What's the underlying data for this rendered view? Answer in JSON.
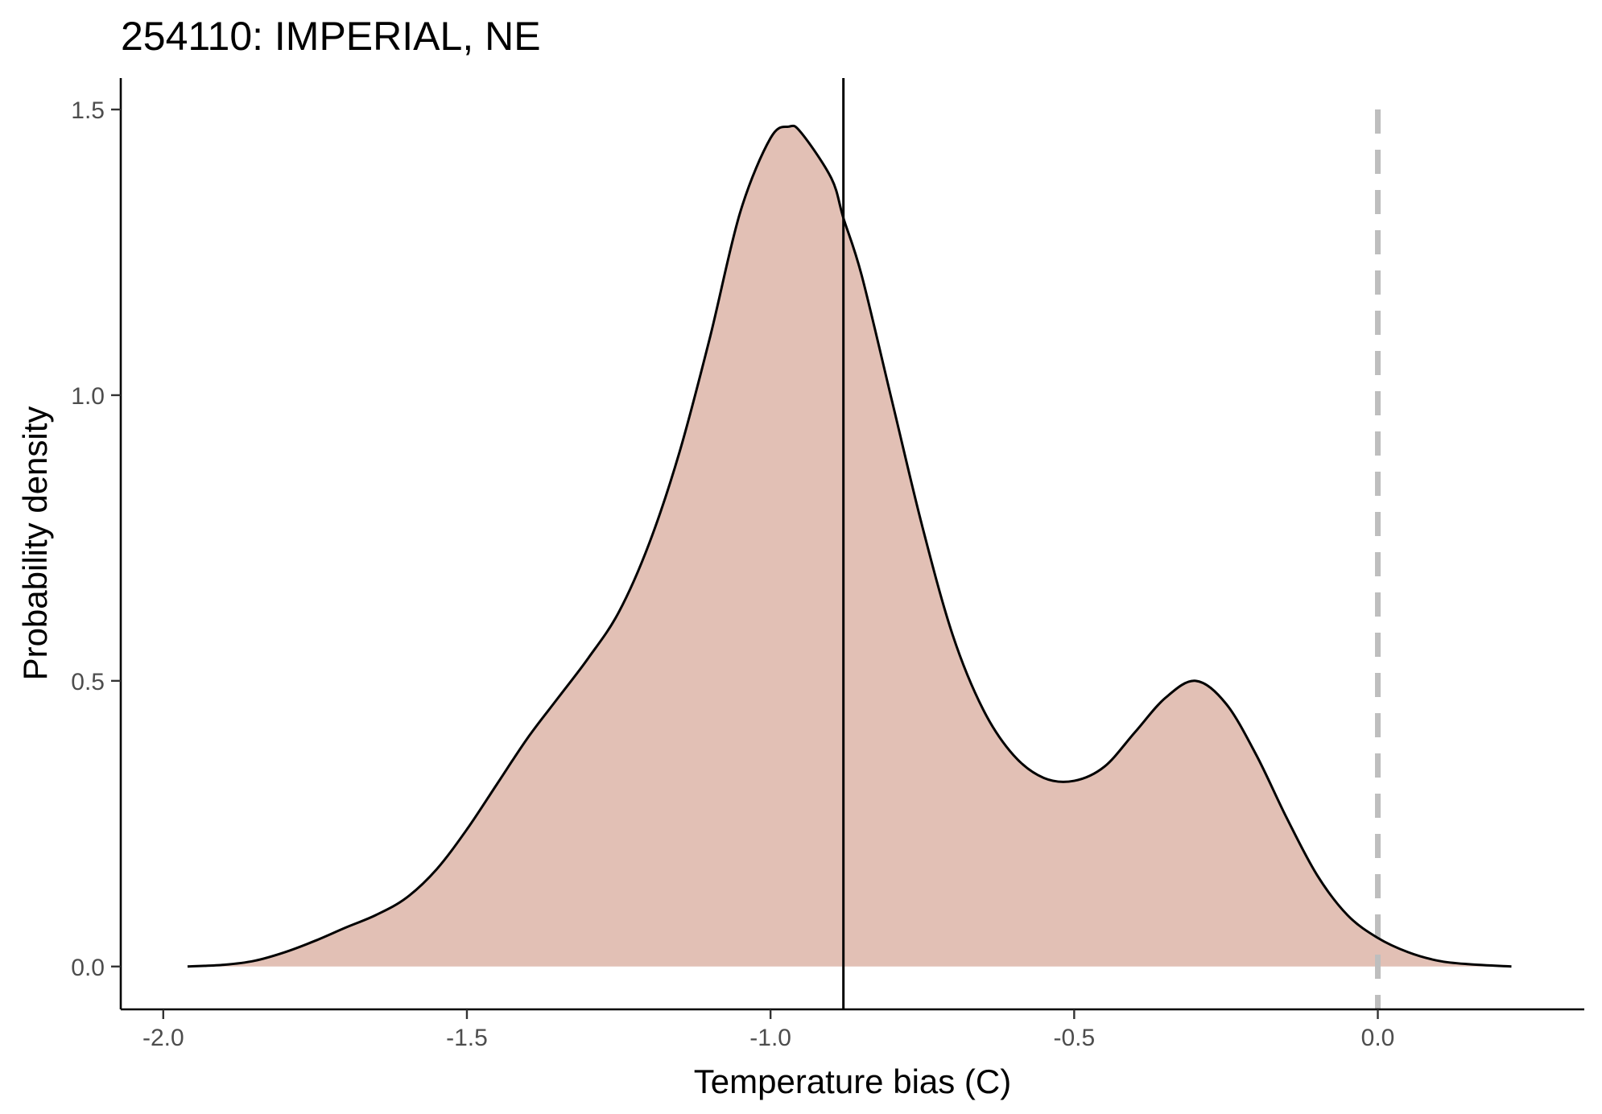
{
  "chart_data": {
    "type": "area",
    "title": "254110: IMPERIAL, NE",
    "xlabel": "Temperature bias (C)",
    "ylabel": "Probability density",
    "xlim": [
      -2.07,
      0.34
    ],
    "ylim": [
      -0.075,
      1.555
    ],
    "x_ticks": [
      -2.0,
      -1.5,
      -1.0,
      -0.5,
      0.0
    ],
    "x_tick_labels": [
      "-2.0",
      "-1.5",
      "-1.0",
      "-0.5",
      "0.0"
    ],
    "y_ticks": [
      0.0,
      0.5,
      1.0,
      1.5
    ],
    "y_tick_labels": [
      "0.0",
      "0.5",
      "1.0",
      "1.5"
    ],
    "grid": false,
    "fill_color": "#e2c0b5",
    "line_color": "#000000",
    "reference_lines": [
      {
        "x": -0.88,
        "style": "solid",
        "color": "#000000"
      },
      {
        "x": 0.0,
        "style": "dashed",
        "color": "#bebebe"
      }
    ],
    "series": [
      {
        "x": [
          -1.96,
          -1.9,
          -1.85,
          -1.8,
          -1.75,
          -1.7,
          -1.65,
          -1.6,
          -1.55,
          -1.5,
          -1.45,
          -1.4,
          -1.35,
          -1.3,
          -1.25,
          -1.2,
          -1.15,
          -1.1,
          -1.05,
          -1.0,
          -0.97,
          -0.95,
          -0.9,
          -0.88,
          -0.85,
          -0.8,
          -0.75,
          -0.7,
          -0.65,
          -0.6,
          -0.55,
          -0.5,
          -0.45,
          -0.4,
          -0.35,
          -0.3,
          -0.25,
          -0.2,
          -0.15,
          -0.1,
          -0.05,
          0.0,
          0.05,
          0.1,
          0.15,
          0.22
        ],
        "y": [
          0.0,
          0.003,
          0.01,
          0.025,
          0.045,
          0.068,
          0.09,
          0.12,
          0.17,
          0.24,
          0.32,
          0.4,
          0.47,
          0.54,
          0.62,
          0.74,
          0.9,
          1.1,
          1.32,
          1.45,
          1.47,
          1.46,
          1.38,
          1.31,
          1.21,
          0.99,
          0.77,
          0.58,
          0.45,
          0.37,
          0.33,
          0.325,
          0.35,
          0.41,
          0.47,
          0.5,
          0.46,
          0.37,
          0.26,
          0.16,
          0.09,
          0.05,
          0.025,
          0.01,
          0.004,
          0.0
        ]
      }
    ]
  }
}
